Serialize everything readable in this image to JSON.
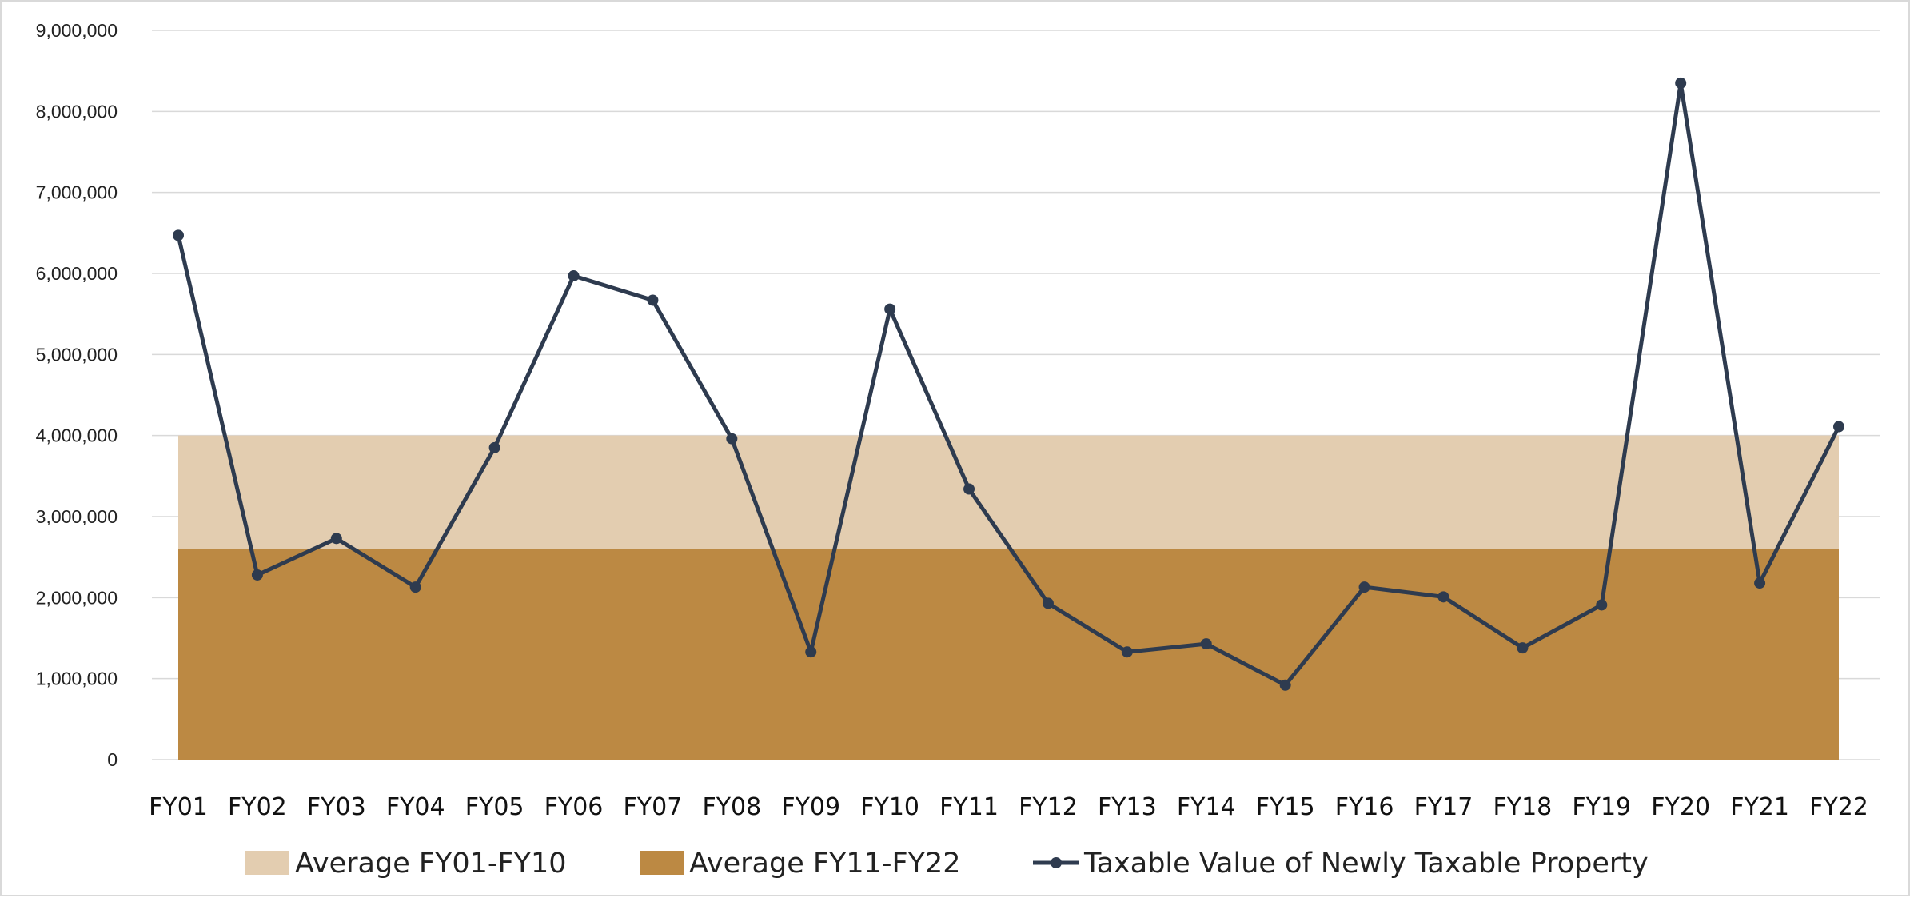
{
  "chart_data": {
    "type": "line",
    "title": "",
    "xlabel": "",
    "ylabel": "",
    "categories": [
      "FY01",
      "FY02",
      "FY03",
      "FY04",
      "FY05",
      "FY06",
      "FY07",
      "FY08",
      "FY09",
      "FY10",
      "FY11",
      "FY12",
      "FY13",
      "FY14",
      "FY15",
      "FY16",
      "FY17",
      "FY18",
      "FY19",
      "FY20",
      "FY21",
      "FY22"
    ],
    "y_ticks": [
      "0",
      "1,000,000",
      "2,000,000",
      "3,000,000",
      "4,000,000",
      "5,000,000",
      "6,000,000",
      "7,000,000",
      "8,000,000",
      "9,000,000"
    ],
    "ylim": [
      0,
      9000000
    ],
    "grid": true,
    "legend_position": "bottom",
    "series": [
      {
        "name": "Average FY01-FY10",
        "type": "area",
        "color": "#e3cdb0",
        "values": [
          4000000,
          4000000,
          4000000,
          4000000,
          4000000,
          4000000,
          4000000,
          4000000,
          4000000,
          4000000,
          4000000,
          4000000,
          4000000,
          4000000,
          4000000,
          4000000,
          4000000,
          4000000,
          4000000,
          4000000,
          4000000,
          4000000
        ]
      },
      {
        "name": "Average FY11-FY22",
        "type": "area",
        "color": "#bc8943",
        "values": [
          2600000,
          2600000,
          2600000,
          2600000,
          2600000,
          2600000,
          2600000,
          2600000,
          2600000,
          2600000,
          2600000,
          2600000,
          2600000,
          2600000,
          2600000,
          2600000,
          2600000,
          2600000,
          2600000,
          2600000,
          2600000,
          2600000
        ]
      },
      {
        "name": "Taxable Value of Newly Taxable Property",
        "type": "line",
        "color": "#2e3b4f",
        "values": [
          6470000,
          2280000,
          2730000,
          2130000,
          3850000,
          5970000,
          5670000,
          3960000,
          1330000,
          5560000,
          3340000,
          1930000,
          1330000,
          1430000,
          920000,
          2130000,
          2010000,
          1380000,
          1910000,
          8350000,
          2180000,
          4110000
        ]
      }
    ]
  }
}
